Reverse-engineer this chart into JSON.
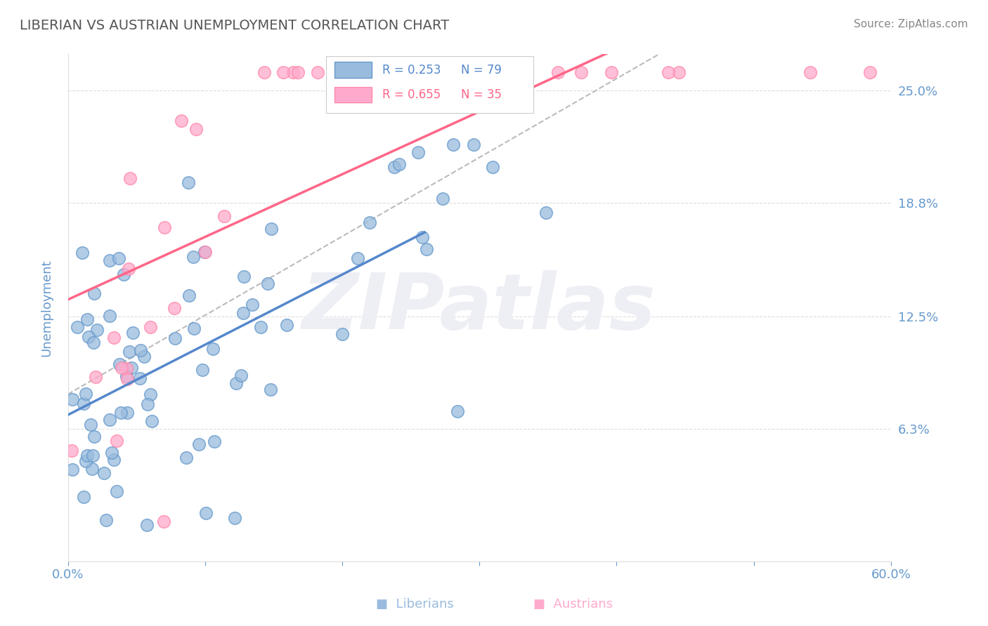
{
  "title": "LIBERIAN VS AUSTRIAN UNEMPLOYMENT CORRELATION CHART",
  "source": "Source: ZipAtlas.com",
  "ylabel": "Unemployment",
  "xlim": [
    0.0,
    0.6
  ],
  "ylim": [
    -0.01,
    0.27
  ],
  "yticks": [
    0.063,
    0.125,
    0.188,
    0.25
  ],
  "ytick_labels": [
    "6.3%",
    "12.5%",
    "18.8%",
    "25.0%"
  ],
  "xtick_positions": [
    0.0,
    0.1,
    0.2,
    0.3,
    0.4,
    0.5,
    0.6
  ],
  "xtick_labels": [
    "0.0%",
    "",
    "",
    "",
    "",
    "",
    "60.0%"
  ],
  "liberian_R": 0.253,
  "liberian_N": 79,
  "austrian_R": 0.655,
  "austrian_N": 35,
  "liberian_color": "#99BBDD",
  "austrian_color": "#FFAACC",
  "liberian_edge_color": "#6699CC",
  "austrian_edge_color": "#FF88AA",
  "liberian_line_color": "#5588CC",
  "austrian_line_color": "#FF6688",
  "dashed_line_color": "#BBBBBB",
  "grid_color": "#DDDDDD",
  "title_color": "#555555",
  "axis_label_color": "#6699CC",
  "watermark_color": "#EEEEF5",
  "background_color": "#FFFFFF",
  "legend_border_color": "#CCCCCC",
  "source_color": "#888888"
}
